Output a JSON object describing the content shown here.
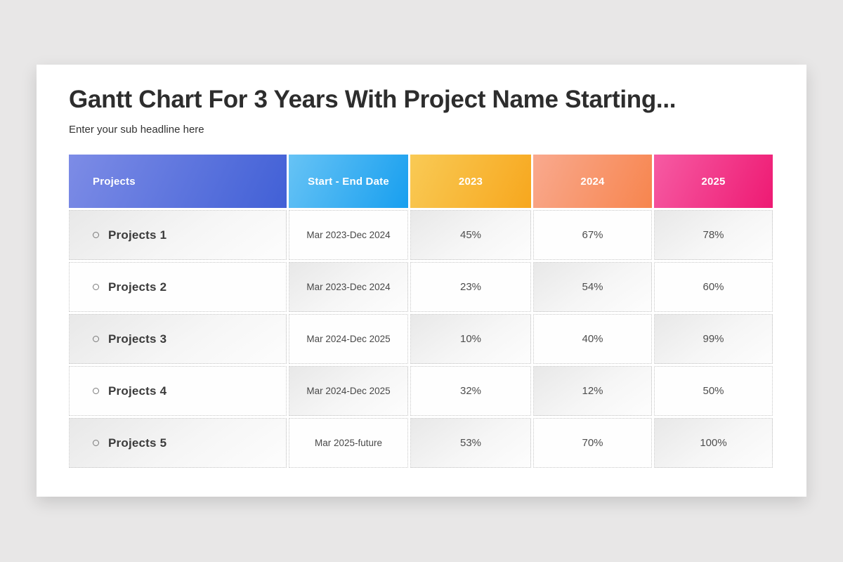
{
  "page": {
    "title": "Gantt Chart For 3 Years With Project Name Starting...",
    "subtitle": "Enter your sub headline here"
  },
  "colors": {
    "background": "#e8e7e7",
    "card": "#ffffff",
    "header_text": "#ffffff",
    "header_projects_from": "#7d8ce6",
    "header_projects_to": "#4160d6",
    "header_date_from": "#67c3f5",
    "header_date_to": "#189fef",
    "header_2023_from": "#f9ca55",
    "header_2023_to": "#f7a71e",
    "header_2024_from": "#f9a98e",
    "header_2024_to": "#f7854e",
    "header_2025_from": "#f65ba3",
    "header_2025_to": "#ee1a73",
    "cell_border": "#c8c8c8",
    "cell_tint": "#e8e8e8",
    "title_text": "#2d2d2d",
    "body_text": "#3b3b3b"
  },
  "table": {
    "columns": [
      {
        "label": "Projects"
      },
      {
        "label": "Start - End Date"
      },
      {
        "label": "2023"
      },
      {
        "label": "2024"
      },
      {
        "label": "2025"
      }
    ],
    "rows": [
      {
        "name": "Projects 1",
        "date": "Mar 2023-Dec 2024",
        "values": [
          "45%",
          "67%",
          "78%"
        ]
      },
      {
        "name": "Projects 2",
        "date": "Mar 2023-Dec 2024",
        "values": [
          "23%",
          "54%",
          "60%"
        ]
      },
      {
        "name": "Projects 3",
        "date": "Mar 2024-Dec 2025",
        "values": [
          "10%",
          "40%",
          "99%"
        ]
      },
      {
        "name": "Projects 4",
        "date": "Mar 2024-Dec 2025",
        "values": [
          "32%",
          "12%",
          "50%"
        ]
      },
      {
        "name": "Projects 5",
        "date": "Mar 2025-future",
        "values": [
          "53%",
          "70%",
          "100%"
        ]
      }
    ]
  },
  "chart_data": {
    "type": "table",
    "title": "Gantt Chart For 3 Years With Project Name Starting...",
    "subtitle": "Enter your sub headline here",
    "columns": [
      "Projects",
      "Start - End Date",
      "2023",
      "2024",
      "2025"
    ],
    "rows": [
      [
        "Projects 1",
        "Mar 2023-Dec 2024",
        "45%",
        "67%",
        "78%"
      ],
      [
        "Projects 2",
        "Mar 2023-Dec 2024",
        "23%",
        "54%",
        "60%"
      ],
      [
        "Projects 3",
        "Mar 2024-Dec 2025",
        "10%",
        "40%",
        "99%"
      ],
      [
        "Projects 4",
        "Mar 2024-Dec 2025",
        "32%",
        "12%",
        "50%"
      ],
      [
        "Projects 5",
        "Mar 2025-future",
        "53%",
        "70%",
        "100%"
      ]
    ]
  }
}
